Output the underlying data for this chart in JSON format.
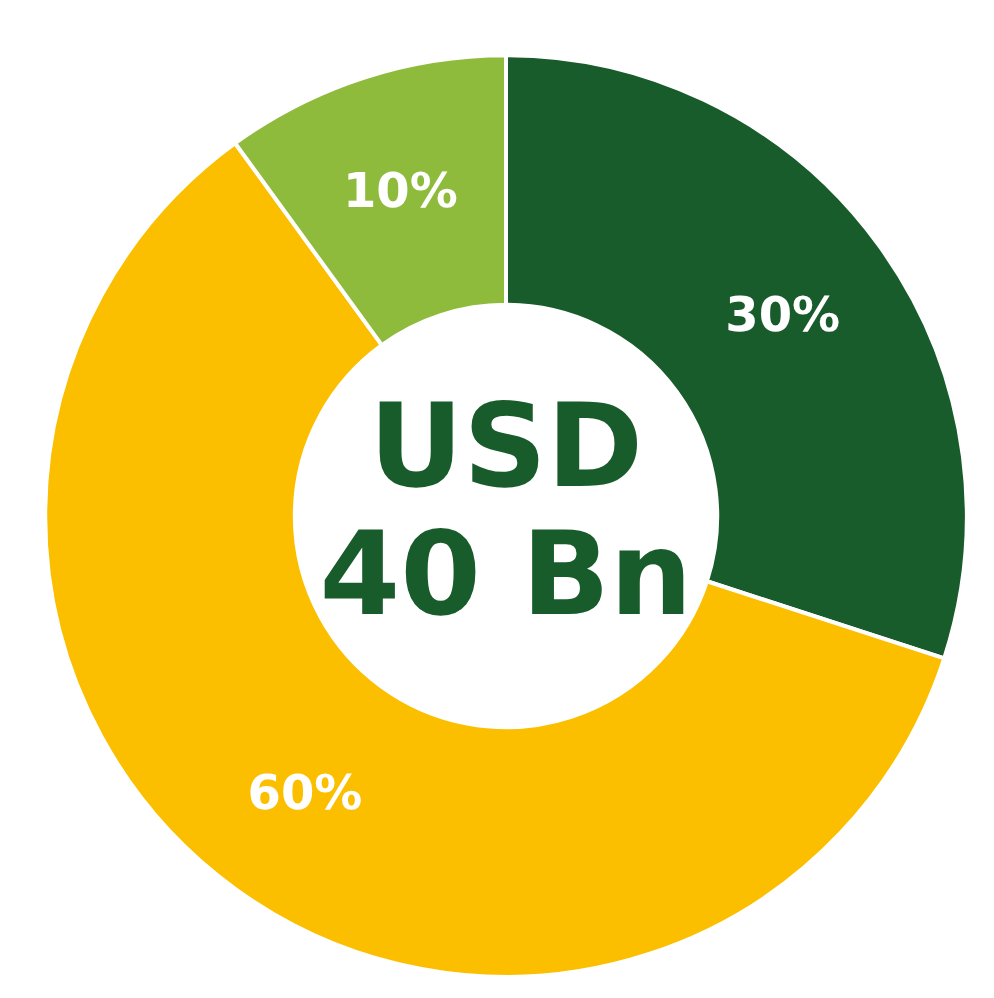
{
  "chart_data": {
    "type": "donut",
    "categories": [
      null,
      null,
      null
    ],
    "values": [
      30,
      60,
      10
    ],
    "colors": [
      "#195c2b",
      "#fbbf00",
      "#8fbb3c"
    ],
    "value_labels": [
      "30%",
      "60%",
      "10%"
    ],
    "annotations": [
      "USD",
      "40 Bn"
    ]
  }
}
